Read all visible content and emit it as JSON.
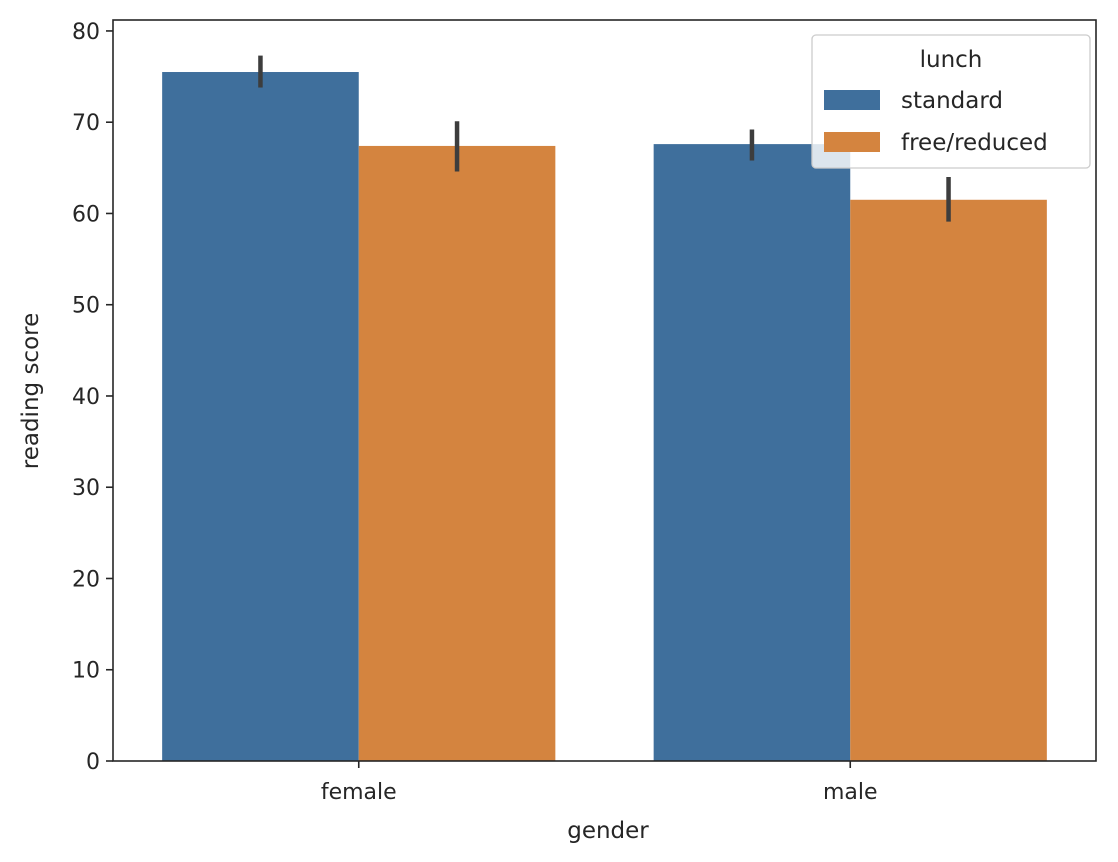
{
  "chart_data": {
    "type": "bar",
    "categories": [
      "female",
      "male"
    ],
    "series": [
      {
        "name": "standard",
        "color": "#3f6f9c",
        "values": [
          75.5,
          67.6
        ],
        "ci": [
          [
            73.8,
            77.3
          ],
          [
            65.8,
            69.2
          ]
        ]
      },
      {
        "name": "free/reduced",
        "color": "#d4843f",
        "values": [
          67.4,
          61.5
        ],
        "ci": [
          [
            64.6,
            70.1
          ],
          [
            59.1,
            64.0
          ]
        ]
      }
    ],
    "title": "",
    "xlabel": "gender",
    "ylabel": "reading score",
    "ylim": [
      0,
      81.2
    ],
    "yticks": [
      0,
      10,
      20,
      30,
      40,
      50,
      60,
      70,
      80
    ],
    "legend": {
      "title": "lunch",
      "placement": "top-right"
    },
    "grid": false
  }
}
